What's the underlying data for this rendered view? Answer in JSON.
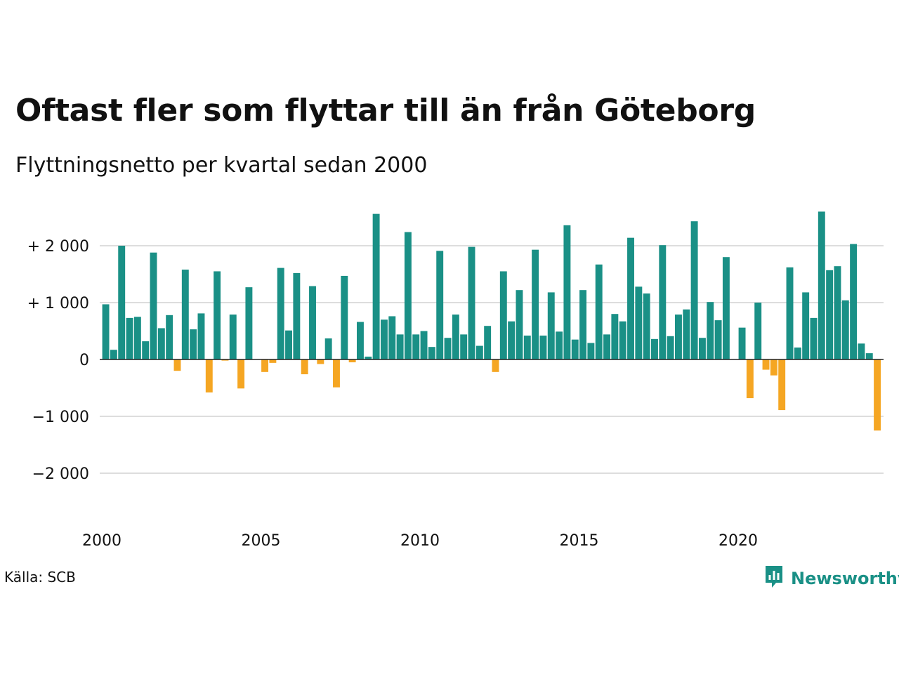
{
  "header": {
    "title": "Oftast fler som flyttar till än från Göteborg",
    "subtitle": "Flyttningsnetto per kvartal sedan 2000"
  },
  "footer": {
    "source": "Källa: SCB",
    "brand": "Newsworthy",
    "brand_icon": "bar-chart-speech-bubble-icon"
  },
  "colors": {
    "positive": "#1a9086",
    "negative": "#f5a623",
    "grid": "#dddddd",
    "zero_line": "#222222"
  },
  "chart_data": {
    "type": "bar",
    "title": "Oftast fler som flyttar till än från Göteborg",
    "subtitle": "Flyttningsnetto per kvartal sedan 2000",
    "x_start": 2000,
    "quarters_per_year": 4,
    "ylim": [
      -2400,
      2700
    ],
    "yticks": [
      2000,
      1000,
      0,
      -1000,
      -2000
    ],
    "ytick_labels": [
      "+ 2 000",
      "+ 1 000",
      "0",
      "−1 000",
      "−2 000"
    ],
    "xticks": [
      2000,
      2005,
      2010,
      2015,
      2020
    ],
    "xtick_labels": [
      "2000",
      "2005",
      "2010",
      "2015",
      "2020"
    ],
    "grid": true,
    "legend": "none",
    "values": [
      970,
      170,
      2000,
      730,
      750,
      320,
      1880,
      550,
      780,
      -200,
      1580,
      530,
      810,
      -580,
      1550,
      -20,
      790,
      -510,
      1270,
      0,
      -220,
      -60,
      1610,
      510,
      1520,
      -260,
      1290,
      -80,
      370,
      -490,
      1470,
      -50,
      660,
      50,
      2560,
      700,
      760,
      440,
      2240,
      440,
      500,
      220,
      1910,
      380,
      790,
      440,
      1980,
      240,
      590,
      -220,
      1550,
      670,
      1220,
      420,
      1930,
      420,
      1180,
      490,
      2360,
      350,
      1220,
      290,
      1670,
      440,
      800,
      670,
      2140,
      1280,
      1160,
      360,
      2010,
      410,
      790,
      880,
      2430,
      380,
      1010,
      690,
      1800,
      0,
      560,
      -680,
      1000,
      -180,
      -280,
      -890,
      1620,
      210,
      1180,
      730,
      2600,
      1570,
      1640,
      1040,
      2030,
      280,
      110,
      -1250
    ]
  }
}
